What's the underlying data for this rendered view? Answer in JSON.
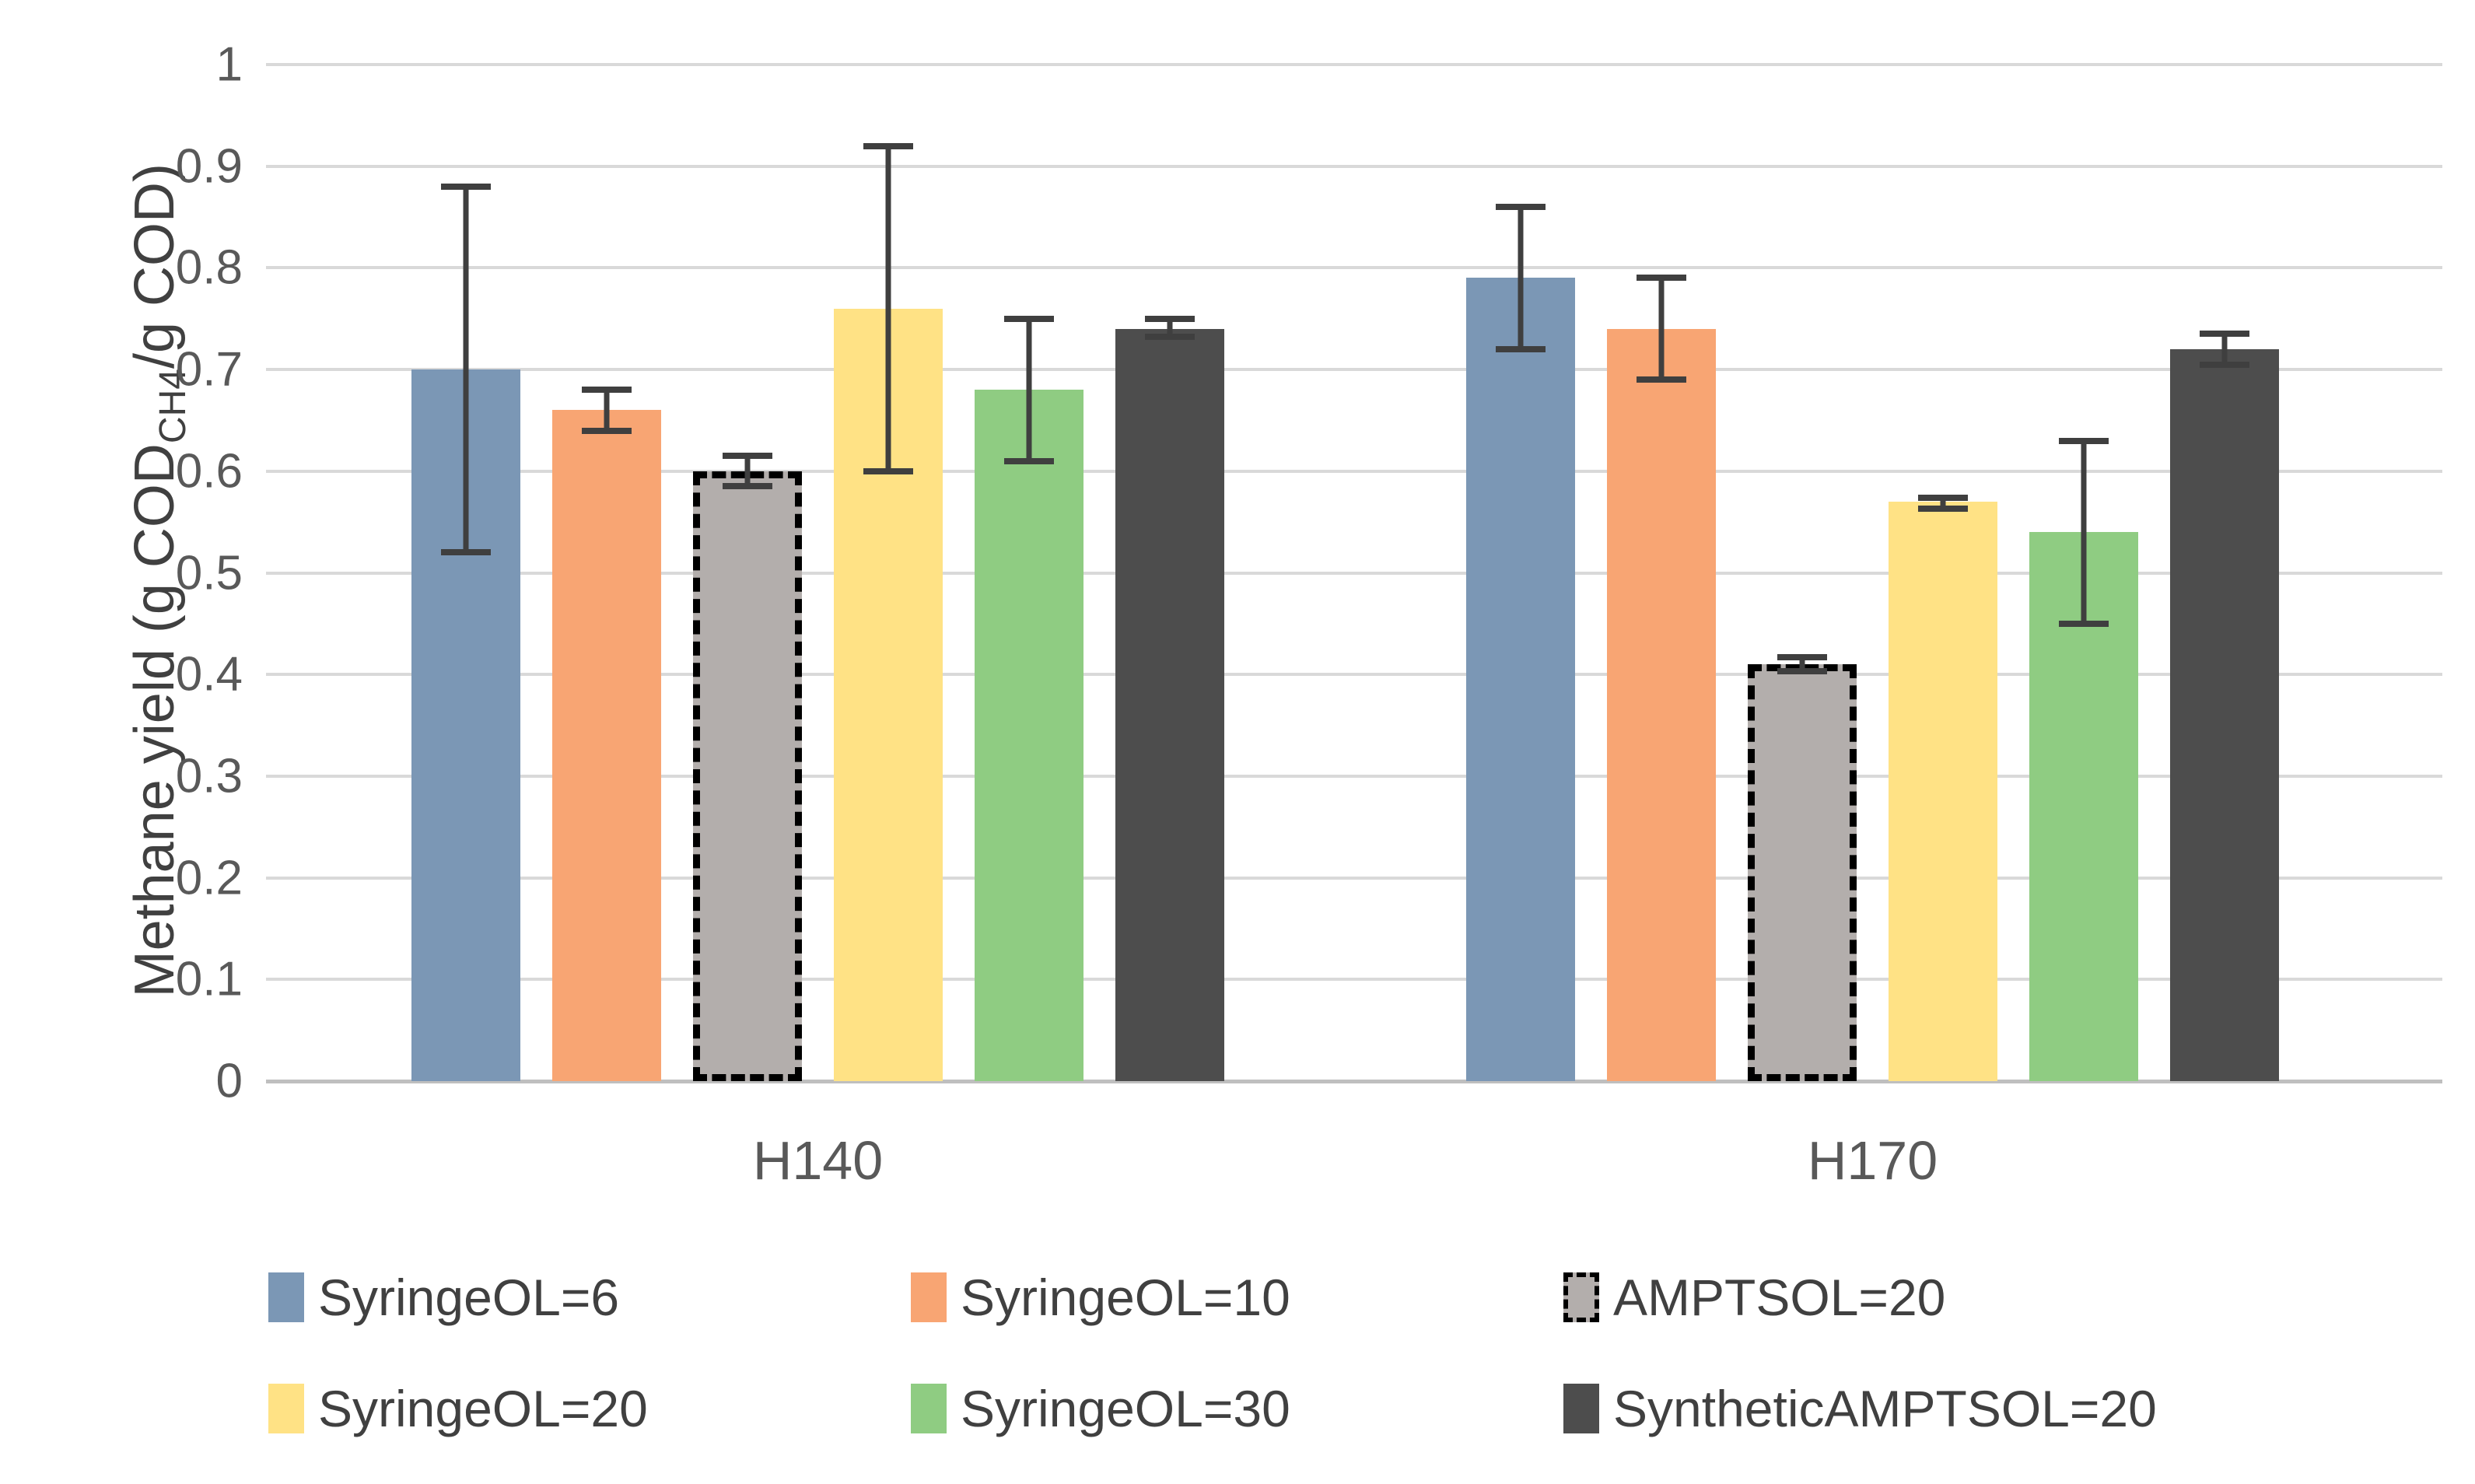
{
  "chart_data": {
    "type": "bar",
    "title": "",
    "ylabel_main": "Methane yield (g COD",
    "ylabel_sub": "CH4",
    "ylabel_end": "/g COD)",
    "categories": [
      "H140",
      "H170"
    ],
    "y_ticks": [
      "0",
      "0.1",
      "0.2",
      "0.3",
      "0.4",
      "0.5",
      "0.6",
      "0.7",
      "0.8",
      "0.9",
      "1"
    ],
    "ylim": [
      0,
      1
    ],
    "grid": true,
    "legend_position": "bottom",
    "error_bar_color": "#3f3f3f",
    "gridline_color": "#d9d9d9",
    "series": [
      {
        "name": "SyringeOL=6",
        "color": "#7b97b5",
        "dashed_border": false,
        "values": [
          0.7,
          0.79
        ],
        "err_low": [
          0.52,
          0.72
        ],
        "err_high": [
          0.88,
          0.86
        ]
      },
      {
        "name": "SyringeOL=10",
        "color": "#f8a573",
        "dashed_border": false,
        "values": [
          0.66,
          0.74
        ],
        "err_low": [
          0.64,
          0.69
        ],
        "err_high": [
          0.68,
          0.79
        ]
      },
      {
        "name": "AMPTSOL=20",
        "color": "#b3aeac",
        "dashed_border": true,
        "values": [
          0.6,
          0.41
        ],
        "err_low": [
          0.585,
          0.403
        ],
        "err_high": [
          0.615,
          0.417
        ]
      },
      {
        "name": "SyringeOL=20",
        "color": "#ffe285",
        "dashed_border": false,
        "values": [
          0.76,
          0.57
        ],
        "err_low": [
          0.6,
          0.563
        ],
        "err_high": [
          0.92,
          0.574
        ]
      },
      {
        "name": "SyringeOL=30",
        "color": "#8fcc82",
        "dashed_border": false,
        "values": [
          0.68,
          0.54
        ],
        "err_low": [
          0.61,
          0.45
        ],
        "err_high": [
          0.75,
          0.63
        ]
      },
      {
        "name": "SyntheticAMPTSOL=20",
        "color": "#4d4d4d",
        "dashed_border": false,
        "values": [
          0.74,
          0.72
        ],
        "err_low": [
          0.732,
          0.705
        ],
        "err_high": [
          0.75,
          0.735
        ]
      }
    ]
  }
}
